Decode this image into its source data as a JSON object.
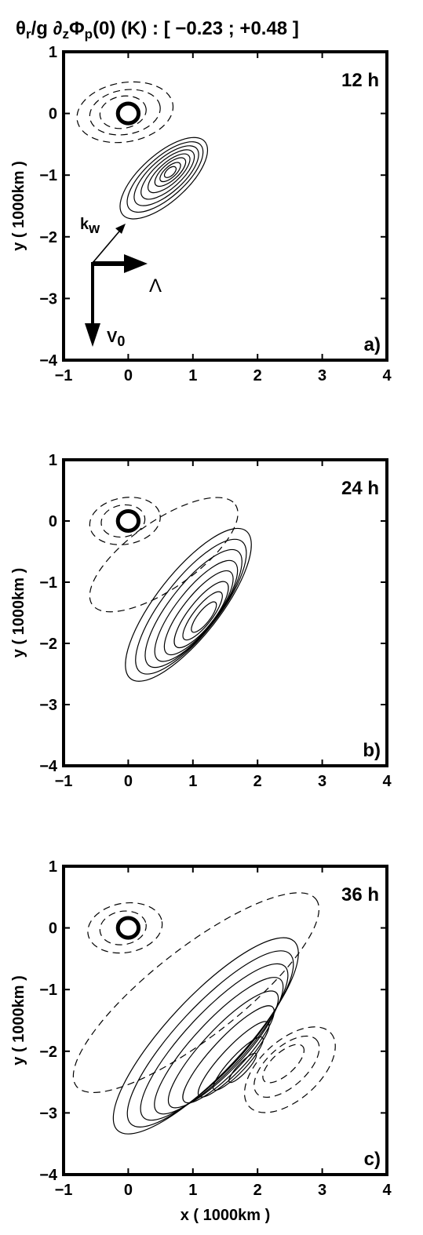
{
  "title": "θr/g ∂zΦp(0) (K) : [ −0.23 ; +0.48 ]",
  "title_parts": {
    "theta": "θ",
    "sub_r": "r",
    "g_part": "/g ∂",
    "sub_z": "z",
    "phi": "Φ",
    "sub_p": "p",
    "rest": "(0) (K) : [ −0.23 ; +0.48 ]"
  },
  "colors": {
    "ink": "#000000",
    "background": "#ffffff"
  },
  "chart_data": [
    {
      "type": "contour",
      "panel_label": "a)",
      "time_label": "12 h",
      "xlabel": "",
      "ylabel": "y  ( 1000km )",
      "xlim": [
        -1,
        4
      ],
      "ylim": [
        -4,
        1
      ],
      "xticks": [
        -1,
        0,
        1,
        2,
        3,
        4
      ],
      "yticks": [
        -4,
        -3,
        -2,
        -1,
        0,
        1
      ],
      "xtick_labels": [
        "−1",
        "0",
        "1",
        "2",
        "3",
        "4"
      ],
      "ytick_labels": [
        "−4",
        "−3",
        "−2",
        "−1",
        "0",
        "1"
      ],
      "marker_circle": {
        "x": 0.0,
        "y": 0.0,
        "r": 0.2
      },
      "positive_center": {
        "x": 0.65,
        "y": -0.95
      },
      "positive_contours": [
        {
          "rx": 0.85,
          "ry": 0.38,
          "angle": -42,
          "dx": -0.1,
          "dy": -0.1
        },
        {
          "rx": 0.74,
          "ry": 0.32,
          "angle": -42,
          "dx": -0.08,
          "dy": -0.08
        },
        {
          "rx": 0.63,
          "ry": 0.27,
          "angle": -42,
          "dx": -0.06,
          "dy": -0.06
        },
        {
          "rx": 0.52,
          "ry": 0.22,
          "angle": -42,
          "dx": -0.04,
          "dy": -0.04
        },
        {
          "rx": 0.41,
          "ry": 0.17,
          "angle": -42,
          "dx": -0.02,
          "dy": -0.02
        },
        {
          "rx": 0.3,
          "ry": 0.13,
          "angle": -42,
          "dx": 0.0,
          "dy": 0.0
        },
        {
          "rx": 0.2,
          "ry": 0.09,
          "angle": -42,
          "dx": 0.0,
          "dy": 0.0
        },
        {
          "rx": 0.11,
          "ry": 0.06,
          "angle": -42,
          "dx": 0.0,
          "dy": 0.0
        }
      ],
      "negative_contours": [
        {
          "cx": -0.05,
          "cy": 0.02,
          "rx": 0.75,
          "ry": 0.48,
          "angle": -10
        },
        {
          "cx": -0.05,
          "cy": 0.02,
          "rx": 0.55,
          "ry": 0.36,
          "angle": -10
        },
        {
          "cx": -0.08,
          "cy": 0.02,
          "rx": 0.36,
          "ry": 0.26,
          "angle": -10
        }
      ],
      "annotations": [
        {
          "text": "k",
          "sub": "w"
        },
        {
          "text": "Λ"
        },
        {
          "text": "V",
          "sub": "0"
        }
      ]
    },
    {
      "type": "contour",
      "panel_label": "b)",
      "time_label": "24 h",
      "xlabel": "",
      "ylabel": "y  ( 1000km )",
      "xlim": [
        -1,
        4
      ],
      "ylim": [
        -4,
        1
      ],
      "xticks": [
        -1,
        0,
        1,
        2,
        3,
        4
      ],
      "yticks": [
        -4,
        -3,
        -2,
        -1,
        0,
        1
      ],
      "xtick_labels": [
        "−1",
        "0",
        "1",
        "2",
        "3",
        "4"
      ],
      "ytick_labels": [
        "−4",
        "−3",
        "−2",
        "−1",
        "0",
        "1"
      ],
      "marker_circle": {
        "x": 0.0,
        "y": 0.0,
        "r": 0.2
      },
      "positive_center": {
        "x": 1.15,
        "y": -1.55
      },
      "positive_contours": [
        {
          "rx": 1.45,
          "ry": 0.52,
          "angle": -52,
          "dx": -0.22,
          "dy": 0.18
        },
        {
          "rx": 1.28,
          "ry": 0.45,
          "angle": -52,
          "dx": -0.18,
          "dy": 0.15
        },
        {
          "rx": 1.12,
          "ry": 0.39,
          "angle": -52,
          "dx": -0.14,
          "dy": 0.12
        },
        {
          "rx": 0.96,
          "ry": 0.33,
          "angle": -52,
          "dx": -0.1,
          "dy": 0.08
        },
        {
          "rx": 0.8,
          "ry": 0.27,
          "angle": -52,
          "dx": -0.06,
          "dy": 0.05
        },
        {
          "rx": 0.63,
          "ry": 0.21,
          "angle": -52,
          "dx": -0.02,
          "dy": 0.02
        },
        {
          "rx": 0.46,
          "ry": 0.15,
          "angle": -52,
          "dx": 0.0,
          "dy": 0.0
        },
        {
          "rx": 0.29,
          "ry": 0.1,
          "angle": -52,
          "dx": 0.02,
          "dy": -0.02
        }
      ],
      "negative_contours": [
        {
          "cx": 0.55,
          "cy": -0.55,
          "rx": 1.35,
          "ry": 0.55,
          "angle": -35
        },
        {
          "cx": -0.05,
          "cy": 0.0,
          "rx": 0.55,
          "ry": 0.38,
          "angle": -10
        },
        {
          "cx": -0.08,
          "cy": 0.0,
          "rx": 0.34,
          "ry": 0.26,
          "angle": -10
        }
      ]
    },
    {
      "type": "contour",
      "panel_label": "c)",
      "time_label": "36 h",
      "xlabel": "x  ( 1000km )",
      "ylabel": "y  ( 1000km )",
      "xlim": [
        -1,
        4
      ],
      "ylim": [
        -4,
        1
      ],
      "xticks": [
        -1,
        0,
        1,
        2,
        3,
        4
      ],
      "yticks": [
        -4,
        -3,
        -2,
        -1,
        0,
        1
      ],
      "xtick_labels": [
        "−1",
        "0",
        "1",
        "2",
        "3",
        "4"
      ],
      "ytick_labels": [
        "−4",
        "−3",
        "−2",
        "−1",
        "0",
        "1"
      ],
      "marker_circle": {
        "x": 0.0,
        "y": 0.0,
        "r": 0.2
      },
      "positive_center": {
        "x": 1.55,
        "y": -2.05
      },
      "positive_contours": [
        {
          "rx": 2.0,
          "ry": 0.62,
          "angle": -47,
          "dx": -0.35,
          "dy": 0.3
        },
        {
          "rx": 1.8,
          "ry": 0.54,
          "angle": -47,
          "dx": -0.28,
          "dy": 0.25
        },
        {
          "rx": 1.6,
          "ry": 0.47,
          "angle": -47,
          "dx": -0.22,
          "dy": 0.2
        },
        {
          "rx": 1.4,
          "ry": 0.4,
          "angle": -47,
          "dx": -0.15,
          "dy": 0.14
        },
        {
          "rx": 1.2,
          "ry": 0.33,
          "angle": -47,
          "dx": -0.08,
          "dy": 0.08
        },
        {
          "rx": 1.0,
          "ry": 0.26,
          "angle": -47,
          "dx": 0.0,
          "dy": 0.0
        },
        {
          "rx": 0.78,
          "ry": 0.19,
          "angle": -47,
          "dx": 0.08,
          "dy": -0.08
        },
        {
          "rx": 0.55,
          "ry": 0.13,
          "angle": -47,
          "dx": 0.15,
          "dy": -0.15
        },
        {
          "rx": 0.3,
          "ry": 0.08,
          "angle": -47,
          "dx": 0.22,
          "dy": -0.22
        }
      ],
      "negative_contours": [
        {
          "cx": 1.05,
          "cy": -1.05,
          "rx": 2.35,
          "ry": 0.72,
          "angle": -38
        },
        {
          "cx": 2.5,
          "cy": -2.3,
          "rx": 0.85,
          "ry": 0.48,
          "angle": -42
        },
        {
          "cx": 2.45,
          "cy": -2.25,
          "rx": 0.62,
          "ry": 0.32,
          "angle": -42
        },
        {
          "cx": 2.4,
          "cy": -2.2,
          "rx": 0.4,
          "ry": 0.18,
          "angle": -42
        },
        {
          "cx": -0.05,
          "cy": 0.0,
          "rx": 0.58,
          "ry": 0.4,
          "angle": -10
        },
        {
          "cx": -0.08,
          "cy": 0.0,
          "rx": 0.36,
          "ry": 0.27,
          "angle": -10
        }
      ]
    }
  ]
}
